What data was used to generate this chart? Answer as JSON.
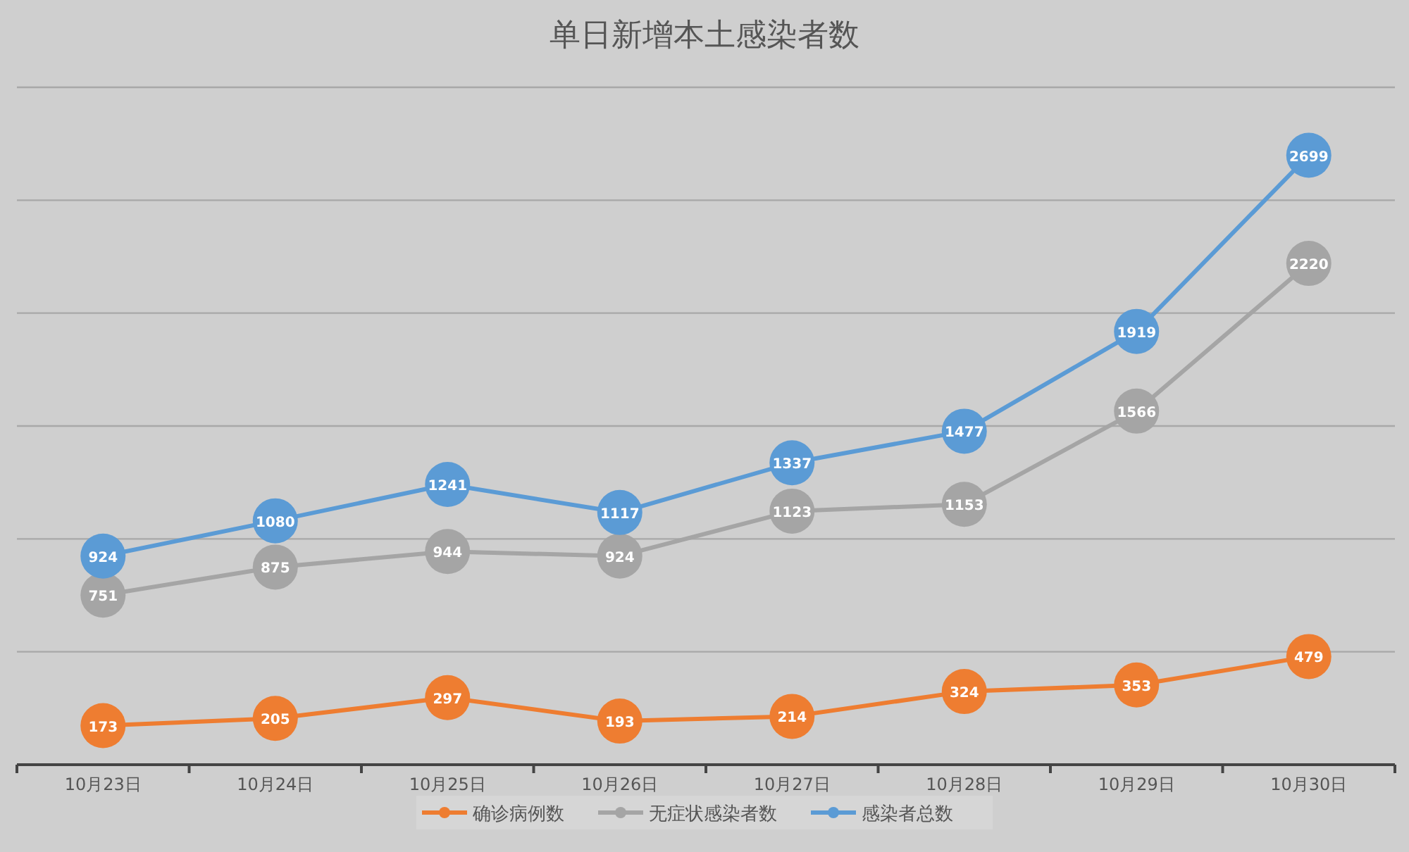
{
  "chart_data": {
    "type": "line",
    "title": "单日新增本土感染者数",
    "categories": [
      "10月23日",
      "10月24日",
      "10月25日",
      "10月26日",
      "10月27日",
      "10月28日",
      "10月29日",
      "10月30日"
    ],
    "series": [
      {
        "name": "确诊病例数",
        "color": "#ee7d31",
        "values": [
          173,
          205,
          297,
          193,
          214,
          324,
          353,
          479
        ]
      },
      {
        "name": "无症状感染者数",
        "color": "#a5a5a5",
        "values": [
          751,
          875,
          944,
          924,
          1123,
          1153,
          1566,
          2220
        ]
      },
      {
        "name": "感染者总数",
        "color": "#5b9bd5",
        "values": [
          924,
          1080,
          1241,
          1117,
          1337,
          1477,
          1919,
          2699
        ]
      }
    ],
    "ylim": [
      0,
      3000
    ],
    "yticks": [
      {
        "value": 0,
        "label": null
      },
      {
        "value": 500,
        "label": null
      },
      {
        "value": 1000,
        "label": null
      },
      {
        "value": 1500,
        "label": null
      },
      {
        "value": 2000,
        "label": null
      },
      {
        "value": 2500,
        "label": null
      },
      {
        "value": 3000,
        "label": null
      }
    ],
    "grid": "y",
    "legend": "bottom",
    "marker": "circle",
    "data_labels": true,
    "tick_labels": "x"
  }
}
